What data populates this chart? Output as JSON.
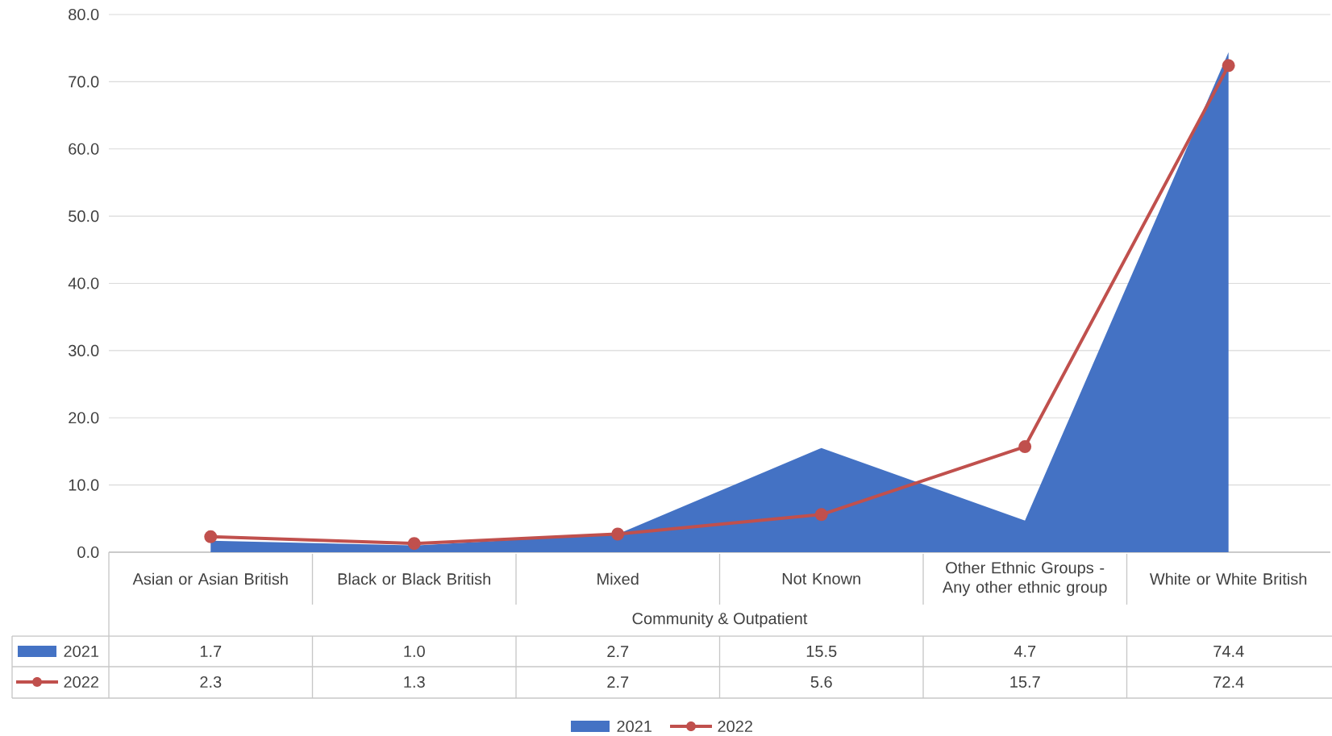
{
  "chart_data": {
    "type": "area",
    "categories": [
      "Asian or Asian British",
      "Black or Black British",
      "Mixed",
      "Not Known",
      "Other Ethnic Groups - Any other ethnic group",
      "White or White British"
    ],
    "xlabel": "Community & Outpatient",
    "series": [
      {
        "name": "2021",
        "color": "#4472c4",
        "values": [
          1.7,
          1.0,
          2.7,
          15.5,
          4.7,
          74.4
        ],
        "value_labels": [
          "1.7",
          "1.0",
          "2.7",
          "15.5",
          "4.7",
          "74.4"
        ]
      },
      {
        "name": "2022",
        "type": "line",
        "color": "#c0504d",
        "marker": "circle",
        "values": [
          2.3,
          1.3,
          2.7,
          5.6,
          15.7,
          72.4
        ],
        "value_labels": [
          "2.3",
          "1.3",
          "2.7",
          "5.6",
          "15.7",
          "72.4"
        ]
      }
    ],
    "ylim": [
      0,
      80
    ],
    "yticks": [
      {
        "value": 0,
        "label": "0.0"
      },
      {
        "value": 10,
        "label": "10.0"
      },
      {
        "value": 20,
        "label": "20.0"
      },
      {
        "value": 30,
        "label": "30.0"
      },
      {
        "value": 40,
        "label": "40.0"
      },
      {
        "value": 50,
        "label": "50.0"
      },
      {
        "value": 60,
        "label": "60.0"
      },
      {
        "value": 70,
        "label": "70.0"
      },
      {
        "value": 80,
        "label": "80.0"
      }
    ],
    "grid": "y",
    "legend": "bottom"
  }
}
